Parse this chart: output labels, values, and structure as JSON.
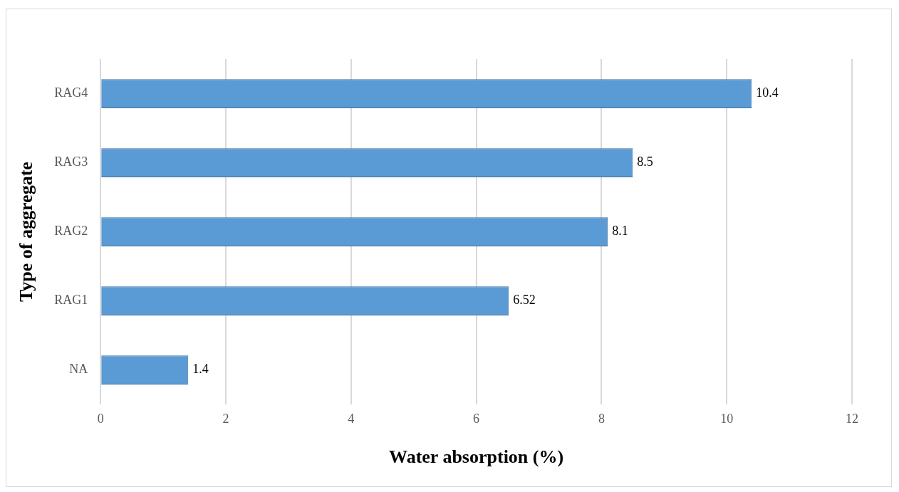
{
  "chart_data": {
    "type": "bar",
    "orientation": "horizontal",
    "xlabel": "Water absorption (%)",
    "ylabel": "Type of aggregate",
    "categories": [
      "RAG4",
      "RAG3",
      "RAG2",
      "RAG1",
      "NA"
    ],
    "values": [
      10.4,
      8.5,
      8.1,
      6.52,
      1.4
    ],
    "color": "#5b9bd5",
    "xlim": [
      0,
      12
    ],
    "xticks": [
      0,
      2,
      4,
      6,
      8,
      10,
      12
    ],
    "grid": "x",
    "data_labels": true
  }
}
